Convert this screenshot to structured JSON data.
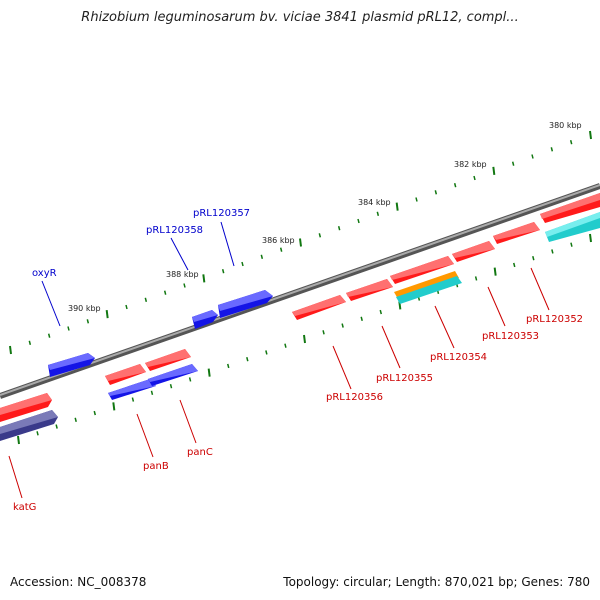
{
  "title": "Rhizobium leguminosarum bv. viciae 3841 plasmid pRL12, compl...",
  "footer": {
    "accession": "Accession: NC_008378",
    "topology": "Topology: circular; Length: 870,021 bp; Genes: 780"
  },
  "colors": {
    "backbone": "#888888",
    "tick": "#117711",
    "forward_label": "#0000cc",
    "reverse_label": "#cc0000",
    "gene_red": "#ff1a1a",
    "gene_blue": "#1414e6",
    "gene_navy": "#3a3a8a",
    "gene_orange": "#ff9900",
    "gene_cyan": "#22cccc"
  },
  "scale_labels": [
    "380 kbp",
    "382 kbp",
    "384 kbp",
    "386 kbp",
    "388 kbp",
    "390 kbp"
  ],
  "forward_gene_labels": [
    "pRL120357",
    "pRL120358",
    "oxyR"
  ],
  "reverse_gene_labels": [
    "pRL120352",
    "pRL120353",
    "pRL120354",
    "pRL120355",
    "pRL120356",
    "panC",
    "panB",
    "katG"
  ]
}
